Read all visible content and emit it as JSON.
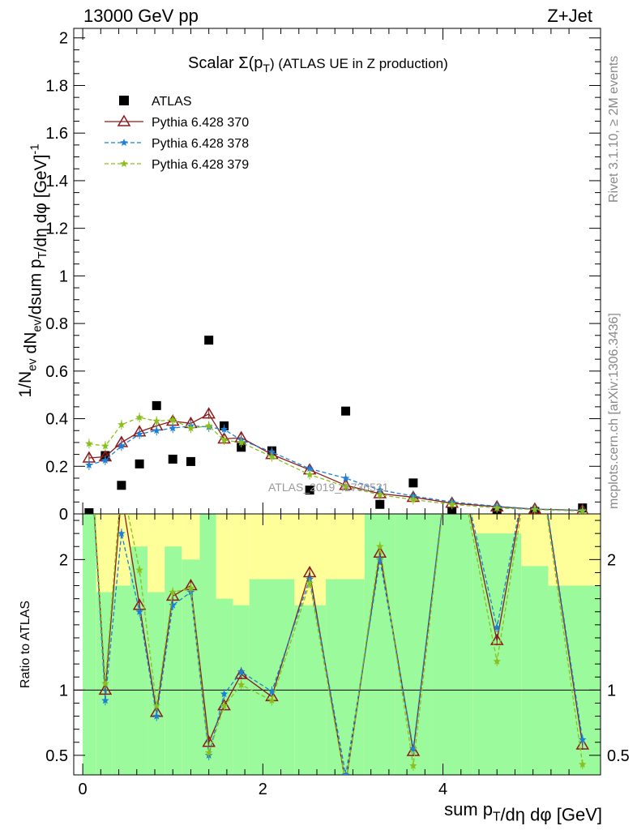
{
  "header": {
    "left": "13000 GeV pp",
    "right": "Z+Jet"
  },
  "side_labels": {
    "rivet": "Rivet 3.1.10, ≥ 2M events",
    "mcplots": "mcplots.cern.ch [arXiv:1306.3436]"
  },
  "title": {
    "prefix": "Scalar Σ(p",
    "sub": "T",
    "suffix": ") (ATLAS UE in Z production)"
  },
  "watermark": "ATLAS_2019_I1736531",
  "y_label_main": "1/N_ev dN_ev/dsum p_T/dη dφ [GeV]^-1",
  "y_label_ratio": "Ratio to ATLAS",
  "x_label": "sum p_T/dη dφ [GeV]",
  "colors": {
    "atlas": "#000000",
    "p370": "#8b1a1a",
    "p378": "#1e7fd6",
    "p379": "#8abf1c",
    "band_inner": "#9bfa9b",
    "band_outer": "#ffff99"
  },
  "chart_data": [
    {
      "type": "scatter",
      "panel": "main",
      "xlim": [
        -0.1,
        5.75
      ],
      "ylim": [
        0,
        2.04
      ],
      "x_ticks": [
        0,
        2,
        4
      ],
      "y_ticks": [
        0,
        0.2,
        0.4,
        0.6,
        0.8,
        1,
        1.2,
        1.4,
        1.6,
        1.8,
        2
      ],
      "y_tick_labels": [
        "0",
        "0.2",
        "0.4",
        "0.6",
        "0.8",
        "1",
        "1.2",
        "1.4",
        "1.6",
        "1.8",
        "2"
      ],
      "legend_position": "top-left",
      "series": [
        {
          "name": "ATLAS",
          "style": "square",
          "x": [
            0.07,
            0.25,
            0.43,
            0.63,
            0.82,
            1.0,
            1.2,
            1.4,
            1.57,
            1.76,
            2.1,
            2.52,
            2.92,
            3.3,
            3.67,
            4.1,
            4.6,
            5.02,
            5.55
          ],
          "y": [
            0.005,
            0.245,
            0.12,
            0.21,
            0.455,
            0.23,
            0.22,
            0.73,
            0.37,
            0.28,
            0.265,
            0.1,
            0.432,
            0.04,
            0.13,
            0.01,
            0.015,
            0.01,
            0.025
          ]
        },
        {
          "name": "Pythia 6.428 370",
          "style": "triangle-line",
          "x": [
            0.07,
            0.25,
            0.43,
            0.63,
            0.82,
            1.0,
            1.2,
            1.4,
            1.57,
            1.76,
            2.1,
            2.52,
            2.92,
            3.3,
            3.67,
            4.1,
            4.6,
            5.02,
            5.55
          ],
          "y": [
            0.235,
            0.24,
            0.3,
            0.345,
            0.37,
            0.39,
            0.38,
            0.42,
            0.315,
            0.32,
            0.25,
            0.185,
            0.12,
            0.085,
            0.07,
            0.045,
            0.03,
            0.02,
            0.015
          ]
        },
        {
          "name": "Pythia 6.428 378",
          "style": "star-dashed",
          "x": [
            0.07,
            0.25,
            0.43,
            0.63,
            0.82,
            1.0,
            1.2,
            1.4,
            1.57,
            1.76,
            2.1,
            2.52,
            2.92,
            3.3,
            3.67,
            4.1,
            4.6,
            5.02,
            5.55
          ],
          "y": [
            0.205,
            0.225,
            0.285,
            0.335,
            0.35,
            0.36,
            0.37,
            0.365,
            0.355,
            0.31,
            0.26,
            0.19,
            0.15,
            0.1,
            0.075,
            0.05,
            0.032,
            0.02,
            0.015
          ]
        },
        {
          "name": "Pythia 6.428 379",
          "style": "star-dashed",
          "x": [
            0.07,
            0.25,
            0.43,
            0.63,
            0.82,
            1.0,
            1.2,
            1.4,
            1.57,
            1.76,
            2.1,
            2.52,
            2.92,
            3.3,
            3.67,
            4.1,
            4.6,
            5.02,
            5.55
          ],
          "y": [
            0.295,
            0.285,
            0.375,
            0.405,
            0.39,
            0.395,
            0.36,
            0.37,
            0.31,
            0.3,
            0.24,
            0.165,
            0.115,
            0.08,
            0.06,
            0.04,
            0.025,
            0.018,
            0.012
          ]
        }
      ]
    },
    {
      "type": "line",
      "panel": "ratio",
      "xlabel": "sum p_T/dη dφ [GeV]",
      "ylabel": "Ratio to ATLAS",
      "xlim": [
        -0.1,
        5.75
      ],
      "ylim": [
        0.35,
        2.35
      ],
      "reference_line": 1,
      "x_ticks": [
        0,
        2,
        4
      ],
      "x_tick_labels": [
        "0",
        "2",
        "4"
      ],
      "y_ticks": [
        0.5,
        1,
        2
      ],
      "y_tick_labels": [
        "0.5",
        "1",
        "2"
      ],
      "bands": {
        "edges": [
          0.0,
          0.15,
          0.33,
          0.53,
          0.72,
          0.91,
          1.1,
          1.3,
          1.48,
          1.67,
          1.85,
          2.35,
          2.7,
          3.13,
          3.47,
          3.87,
          4.33,
          4.87,
          5.17,
          5.75
        ],
        "inner": [
          [
            0.35,
            2.35
          ],
          [
            0.35,
            1.75
          ],
          [
            0.35,
            1.8
          ],
          [
            0.35,
            2.1
          ],
          [
            0.35,
            1.75
          ],
          [
            0.35,
            2.1
          ],
          [
            0.35,
            2.0
          ],
          [
            0.35,
            2.35
          ],
          [
            0.35,
            1.7
          ],
          [
            0.35,
            1.65
          ],
          [
            0.35,
            1.85
          ],
          [
            0.35,
            1.65
          ],
          [
            0.35,
            1.85
          ],
          [
            0.35,
            2.35
          ],
          [
            0.35,
            2.35
          ],
          [
            0.35,
            2.35
          ],
          [
            0.35,
            2.2
          ],
          [
            0.35,
            1.95
          ],
          [
            0.35,
            1.8
          ]
        ],
        "outer": [
          [
            0.35,
            2.35
          ],
          [
            0.35,
            2.35
          ],
          [
            0.35,
            2.35
          ],
          [
            0.35,
            2.35
          ],
          [
            0.35,
            2.35
          ],
          [
            0.35,
            2.35
          ],
          [
            0.35,
            2.35
          ],
          [
            0.35,
            2.35
          ],
          [
            0.35,
            2.35
          ],
          [
            0.35,
            2.35
          ],
          [
            0.35,
            2.35
          ],
          [
            0.35,
            2.35
          ],
          [
            0.35,
            2.35
          ],
          [
            0.35,
            2.35
          ],
          [
            0.35,
            2.35
          ],
          [
            0.35,
            2.35
          ],
          [
            0.35,
            2.35
          ],
          [
            0.35,
            2.35
          ],
          [
            0.35,
            2.35
          ]
        ]
      },
      "series": [
        {
          "name": "Pythia 6.428 370",
          "x": [
            0.07,
            0.25,
            0.43,
            0.63,
            0.82,
            1.0,
            1.2,
            1.4,
            1.57,
            1.76,
            2.1,
            2.52,
            2.92,
            3.3,
            3.67,
            4.1,
            4.6,
            5.02,
            5.55
          ],
          "y": [
            3.0,
            1.0,
            2.5,
            1.65,
            0.83,
            1.72,
            1.8,
            0.6,
            0.88,
            1.12,
            0.95,
            1.9,
            0.28,
            2.05,
            0.53,
            3.0,
            1.38,
            3.0,
            0.58
          ]
        },
        {
          "name": "Pythia 6.428 378",
          "x": [
            0.07,
            0.25,
            0.43,
            0.63,
            0.82,
            1.0,
            1.2,
            1.4,
            1.57,
            1.76,
            2.1,
            2.52,
            2.92,
            3.3,
            3.67,
            4.1,
            4.6,
            5.02,
            5.55
          ],
          "y": [
            3.0,
            0.92,
            2.2,
            1.6,
            0.8,
            1.65,
            1.75,
            0.5,
            0.97,
            1.14,
            0.99,
            1.85,
            0.35,
            2.0,
            0.55,
            3.0,
            1.48,
            3.0,
            0.62
          ]
        },
        {
          "name": "Pythia 6.428 379",
          "x": [
            0.07,
            0.25,
            0.43,
            0.63,
            0.82,
            1.0,
            1.2,
            1.4,
            1.57,
            1.76,
            2.1,
            2.52,
            2.92,
            3.3,
            3.67,
            4.1,
            4.6,
            5.02,
            5.55
          ],
          "y": [
            3.0,
            1.05,
            2.6,
            1.92,
            0.88,
            1.75,
            1.78,
            0.52,
            0.88,
            1.04,
            0.92,
            1.82,
            0.28,
            2.1,
            0.42,
            3.0,
            1.22,
            3.0,
            0.43
          ]
        }
      ]
    }
  ]
}
